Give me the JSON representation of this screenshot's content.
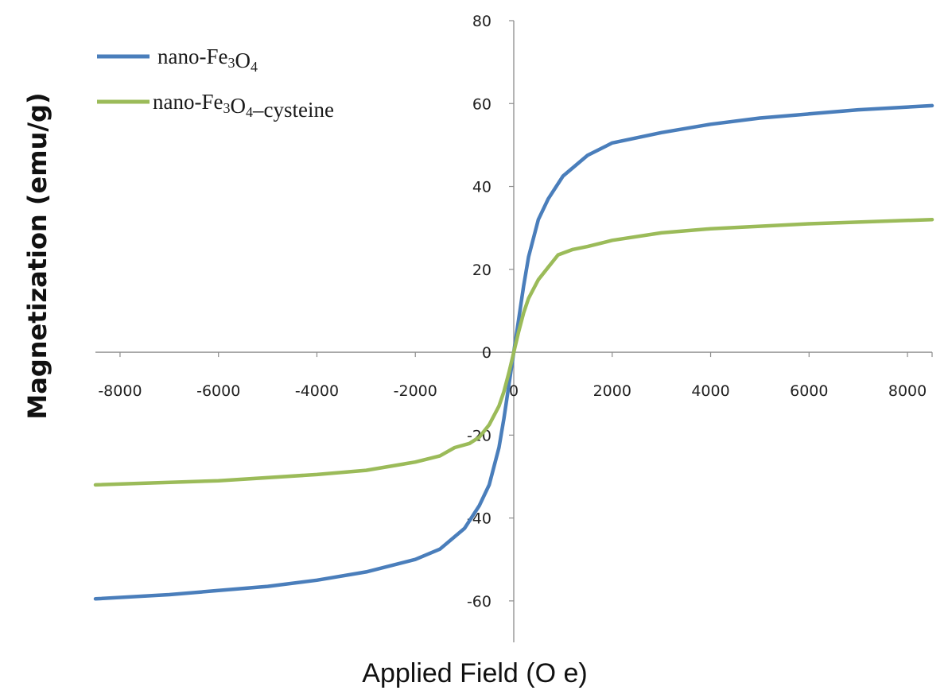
{
  "chart_data": {
    "type": "line",
    "title": "",
    "xlabel": "Applied Field (O e)",
    "ylabel": "Magnetization (emu/g)",
    "xlim": [
      -8500,
      8500
    ],
    "ylim": [
      -70,
      80
    ],
    "x_ticks": [
      -8000,
      -6000,
      -4000,
      -2000,
      0,
      2000,
      4000,
      6000,
      8000
    ],
    "y_ticks": [
      -60,
      -40,
      -20,
      0,
      20,
      40,
      60,
      80
    ],
    "grid": false,
    "legend_position": "top-left",
    "series": [
      {
        "name": "nano-Fe3O4",
        "legend_main": "nano-Fe",
        "legend_sub1": "3",
        "legend_mid": "O",
        "legend_sub2": "4",
        "legend_tail": "",
        "color": "#4a7ebb",
        "x": [
          -8500,
          -7000,
          -6000,
          -5000,
          -4000,
          -3000,
          -2000,
          -1500,
          -1000,
          -700,
          -500,
          -300,
          -200,
          -100,
          0,
          100,
          200,
          300,
          500,
          700,
          1000,
          1500,
          2000,
          3000,
          4000,
          5000,
          6000,
          7000,
          8500
        ],
        "y": [
          -59.5,
          -58.5,
          -57.5,
          -56.5,
          -55,
          -53,
          -50,
          -47.5,
          -42.5,
          -37,
          -32,
          -23,
          -16,
          -8,
          0,
          8,
          16,
          23,
          32,
          37,
          42.5,
          47.5,
          50.5,
          53,
          55,
          56.5,
          57.5,
          58.5,
          59.5
        ]
      },
      {
        "name": "nano-Fe3O4-cysteine",
        "legend_main": "nano-Fe",
        "legend_sub1": "3",
        "legend_mid": "O",
        "legend_sub2": "4",
        "legend_tail": "–cysteine",
        "color": "#9bbb59",
        "x": [
          -8500,
          -6000,
          -4000,
          -3000,
          -2000,
          -1500,
          -1200,
          -900,
          -700,
          -500,
          -300,
          -200,
          -100,
          0,
          100,
          200,
          300,
          500,
          700,
          900,
          1200,
          1500,
          2000,
          3000,
          4000,
          6000,
          8500
        ],
        "y": [
          -32,
          -31,
          -29.5,
          -28.5,
          -26.5,
          -25,
          -23,
          -22,
          -20.5,
          -17.5,
          -13,
          -9.5,
          -5,
          0,
          5,
          9.5,
          13,
          17.5,
          20.5,
          23.5,
          24.8,
          25.5,
          27,
          28.8,
          29.8,
          31,
          32
        ]
      }
    ]
  }
}
